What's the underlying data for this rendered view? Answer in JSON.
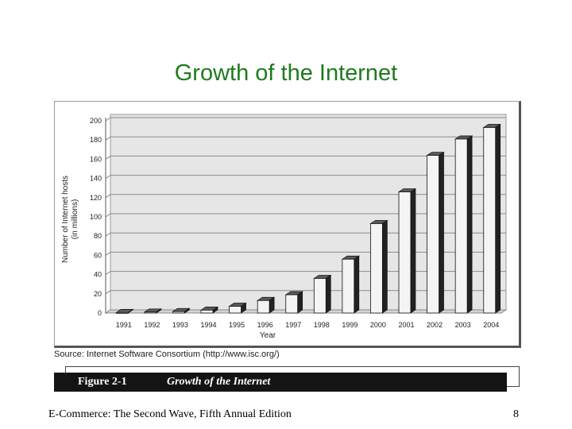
{
  "slide": {
    "title": "Growth of the Internet",
    "footer_left": "E-Commerce: The Second Wave, Fifth Annual Edition",
    "page_number": "8"
  },
  "figure": {
    "source": "Source: Internet Software Consortium (http://www.isc.org/)",
    "caption_number": "Figure 2-1",
    "caption_text": "Growth of the Internet"
  },
  "chart_data": {
    "type": "bar",
    "title": "",
    "xlabel": "Year",
    "ylabel": "Number of Internet hosts",
    "ylabel_sub": "(in millions)",
    "categories": [
      "1991",
      "1992",
      "1993",
      "1994",
      "1995",
      "1996",
      "1997",
      "1998",
      "1999",
      "2000",
      "2001",
      "2002",
      "2003",
      "2004"
    ],
    "values": [
      0.5,
      1,
      1.5,
      3,
      7,
      13,
      19,
      36,
      56,
      93,
      126,
      164,
      181,
      193
    ],
    "ylim": [
      0,
      200
    ],
    "yticks": [
      0,
      20,
      40,
      60,
      80,
      100,
      120,
      140,
      160,
      180,
      200
    ],
    "grid": true,
    "bar_color": "#f4f4f4",
    "plot_background": "#e6e6e6"
  }
}
